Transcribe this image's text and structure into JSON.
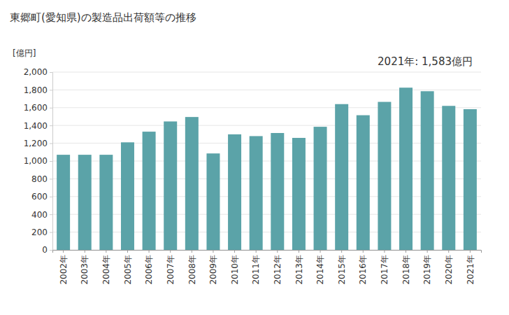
{
  "chart_data": {
    "type": "bar",
    "title": "東郷町(愛知県)の製造品出荷額等の推移",
    "annotation": "2021年: 1,583億円",
    "ylabel": "[億円]",
    "categories": [
      "2002年",
      "2003年",
      "2004年",
      "2005年",
      "2006年",
      "2007年",
      "2008年",
      "2009年",
      "2010年",
      "2011年",
      "2012年",
      "2013年",
      "2014年",
      "2015年",
      "2016年",
      "2017年",
      "2018年",
      "2019年",
      "2020年",
      "2021年"
    ],
    "values": [
      1070,
      1070,
      1070,
      1210,
      1330,
      1445,
      1495,
      1085,
      1300,
      1280,
      1315,
      1260,
      1385,
      1640,
      1515,
      1665,
      1825,
      1785,
      1620,
      1583
    ],
    "color": "#5ba3a8",
    "ylim": [
      0,
      2000
    ],
    "yticks": [
      0,
      200,
      400,
      600,
      800,
      {
        "value": 1000,
        "label": "1,000"
      },
      {
        "value": 1200,
        "label": "1,200"
      },
      {
        "value": 1400,
        "label": "1,400"
      },
      {
        "value": 1600,
        "label": "1,600"
      },
      {
        "value": 1800,
        "label": "1,800"
      },
      {
        "value": 2000,
        "label": "2,000"
      }
    ],
    "grid": true
  }
}
